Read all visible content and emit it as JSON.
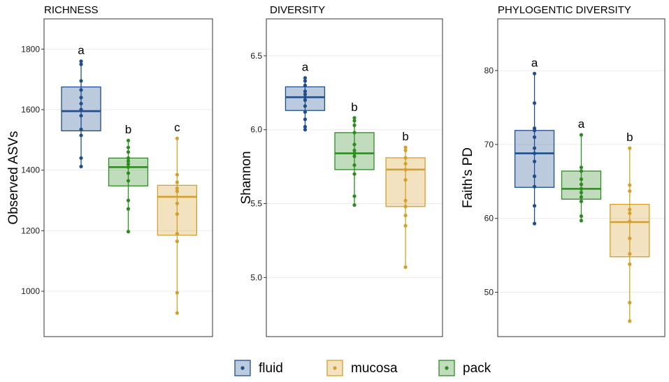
{
  "colors": {
    "fluid": "#1f4e8c",
    "mucosa": "#d4a02c",
    "pack": "#2e8b22"
  },
  "legend": {
    "items": [
      {
        "key": "fluid",
        "label": "fluid"
      },
      {
        "key": "mucosa",
        "label": "mucosa"
      },
      {
        "key": "pack",
        "label": "pack"
      }
    ]
  },
  "chart_data": [
    {
      "type": "box",
      "title": "RICHNESS",
      "ylabel": "Observed ASVs",
      "ylim": [
        850,
        1900
      ],
      "yticks": [
        1000,
        1200,
        1400,
        1600,
        1800
      ],
      "groups": [
        {
          "name": "fluid",
          "min": 1412,
          "q1": 1530,
          "median": 1595,
          "q3": 1675,
          "max": 1760,
          "letter": "a",
          "points": [
            1412,
            1440,
            1515,
            1535,
            1580,
            1600,
            1620,
            1640,
            1665,
            1695,
            1750,
            1760
          ]
        },
        {
          "name": "pack",
          "min": 1197,
          "q1": 1348,
          "median": 1410,
          "q3": 1440,
          "max": 1498,
          "letter": "b",
          "points": [
            1197,
            1272,
            1300,
            1365,
            1390,
            1410,
            1420,
            1430,
            1440,
            1460,
            1475,
            1498
          ]
        },
        {
          "name": "mucosa",
          "min": 928,
          "q1": 1185,
          "median": 1312,
          "q3": 1350,
          "max": 1505,
          "letter": "c",
          "points": [
            928,
            995,
            1165,
            1190,
            1255,
            1290,
            1330,
            1340,
            1360,
            1385,
            1505
          ]
        }
      ]
    },
    {
      "type": "box",
      "title": "DIVERSITY",
      "ylabel": "Shannon",
      "ylim": [
        4.6,
        6.75
      ],
      "yticks": [
        5.0,
        5.5,
        6.0,
        6.5
      ],
      "groups": [
        {
          "name": "fluid",
          "min": 6.0,
          "q1": 6.13,
          "median": 6.22,
          "q3": 6.29,
          "max": 6.35,
          "letter": "a",
          "points": [
            6.0,
            6.02,
            6.07,
            6.12,
            6.16,
            6.2,
            6.22,
            6.24,
            6.26,
            6.3,
            6.33,
            6.35
          ]
        },
        {
          "name": "pack",
          "min": 5.49,
          "q1": 5.73,
          "median": 5.84,
          "q3": 5.98,
          "max": 6.08,
          "letter": "b",
          "points": [
            5.49,
            5.55,
            5.7,
            5.76,
            5.82,
            5.84,
            5.86,
            5.9,
            5.98,
            6.03,
            6.06,
            6.08
          ]
        },
        {
          "name": "mucosa",
          "min": 5.07,
          "q1": 5.48,
          "median": 5.73,
          "q3": 5.81,
          "max": 5.88,
          "letter": "b",
          "points": [
            5.07,
            5.35,
            5.42,
            5.48,
            5.52,
            5.66,
            5.73,
            5.77,
            5.81,
            5.86,
            5.88
          ]
        }
      ]
    },
    {
      "type": "box",
      "title": "PHYLOGENTIC DIVERSITY",
      "ylabel": "Faith's PD",
      "ylim": [
        44,
        87
      ],
      "yticks": [
        50,
        60,
        70,
        80
      ],
      "groups": [
        {
          "name": "fluid",
          "min": 59.3,
          "q1": 64.2,
          "median": 68.8,
          "q3": 71.9,
          "max": 79.6,
          "letter": "a",
          "points": [
            59.3,
            61.7,
            64.3,
            65.7,
            67.7,
            68.8,
            69.5,
            71.0,
            71.9,
            72.2,
            75.6,
            79.6
          ]
        },
        {
          "name": "pack",
          "min": 59.7,
          "q1": 62.6,
          "median": 64.0,
          "q3": 66.4,
          "max": 71.3,
          "letter": "a",
          "points": [
            59.7,
            60.3,
            62.3,
            62.9,
            63.5,
            64.0,
            64.6,
            65.3,
            66.4,
            66.9,
            71.3
          ]
        },
        {
          "name": "mucosa",
          "min": 46.1,
          "q1": 54.8,
          "median": 59.5,
          "q3": 61.9,
          "max": 69.5,
          "letter": "b",
          "points": [
            46.1,
            48.6,
            53.8,
            55.2,
            57.3,
            59.6,
            60.7,
            61.2,
            63.7,
            64.5,
            69.5
          ]
        }
      ]
    }
  ]
}
